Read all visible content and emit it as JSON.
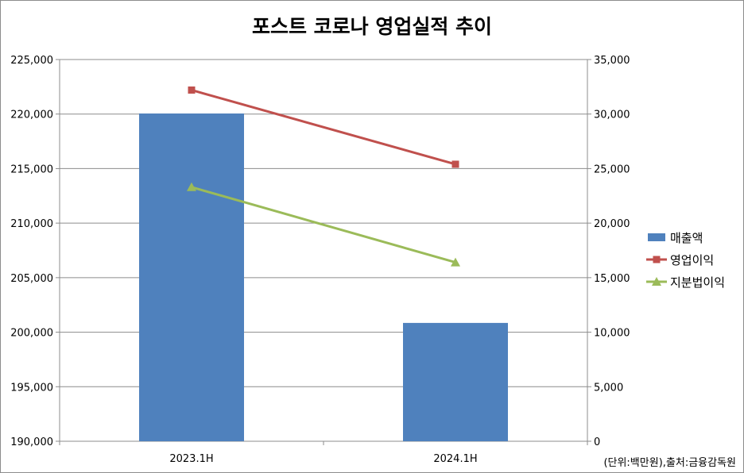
{
  "chart_data": {
    "type": "bar+line",
    "title": "포스트 코로나 영업실적 추이",
    "categories": [
      "2023.1H",
      "2024.1H"
    ],
    "left_axis": {
      "range": [
        190000,
        225000
      ],
      "ticks": [
        "190,000",
        "195,000",
        "200,000",
        "205,000",
        "210,000",
        "215,000",
        "220,000",
        "225,000"
      ]
    },
    "right_axis": {
      "range": [
        0,
        35000
      ],
      "ticks": [
        "0",
        "5,000",
        "10,000",
        "15,000",
        "20,000",
        "25,000",
        "30,000",
        "35,000"
      ]
    },
    "series": [
      {
        "name": "매출액",
        "type": "bar",
        "axis": "left",
        "color": "#4f81bd",
        "values": [
          220050,
          200850
        ]
      },
      {
        "name": "영업이익",
        "type": "line",
        "axis": "right",
        "marker": "square",
        "color": "#c0504d",
        "values": [
          32200,
          25400
        ]
      },
      {
        "name": "지분법이익",
        "type": "line",
        "axis": "right",
        "marker": "triangle",
        "color": "#9bbb59",
        "values": [
          23300,
          16400
        ]
      }
    ],
    "grid": true,
    "legend_position": "right"
  },
  "source_note": "(단위:백만원),출처:금융감독원"
}
